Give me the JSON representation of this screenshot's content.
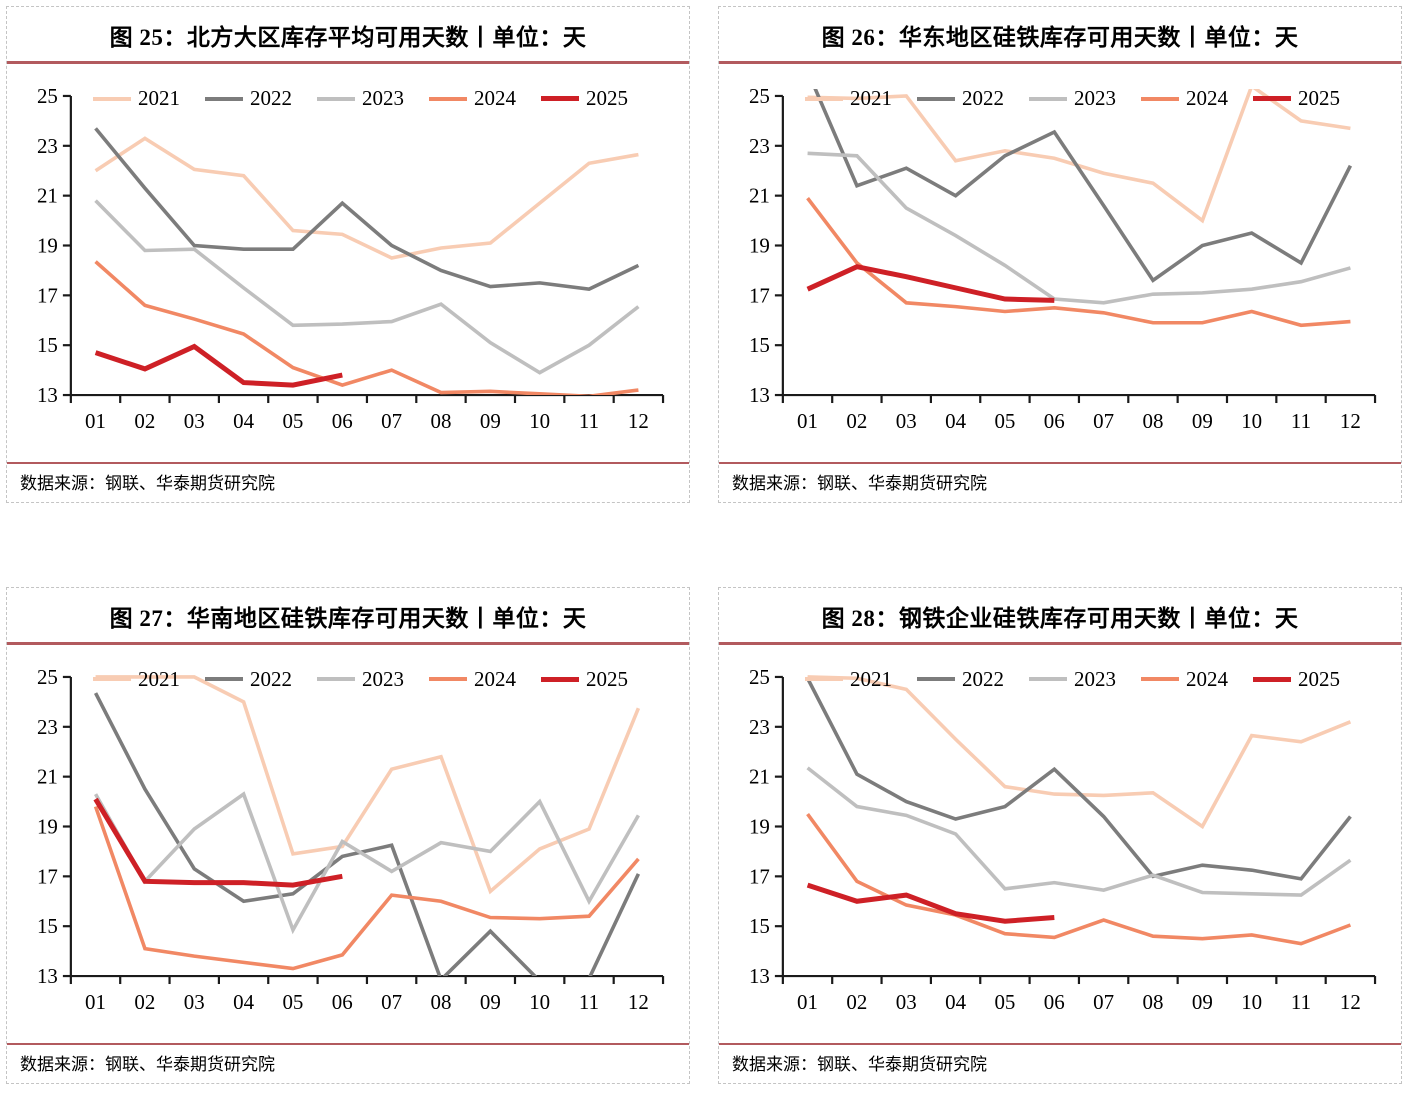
{
  "source_note": "数据来源：钢联、华泰期货研究院",
  "colors": {
    "accent_rule": "#b25a5e",
    "axis": "#1a1a1a",
    "panel_border": "#c4c4c4",
    "y2021": "#f8ccb3",
    "y2022": "#7c7c7c",
    "y2023": "#bfbfbf",
    "y2024": "#f18864",
    "y2025": "#ce2026"
  },
  "chart_data": [
    {
      "type": "line",
      "title": "图 25：北方大区库存平均可用天数丨单位：天",
      "source": "数据来源：钢联、华泰期货研究院",
      "categories": [
        "01",
        "02",
        "03",
        "04",
        "05",
        "06",
        "07",
        "08",
        "09",
        "10",
        "11",
        "12"
      ],
      "ylim": [
        13,
        25
      ],
      "yticks": [
        25,
        23,
        21,
        19,
        17,
        15,
        13
      ],
      "grid": false,
      "legend_position": "top-inside",
      "series": [
        {
          "name": "2021",
          "color": "#f8ccb3",
          "emphasis": false,
          "values": [
            22.0,
            23.3,
            22.05,
            21.8,
            19.6,
            19.45,
            18.5,
            18.9,
            19.1,
            20.7,
            22.3,
            22.65
          ]
        },
        {
          "name": "2022",
          "color": "#7c7c7c",
          "emphasis": false,
          "values": [
            23.7,
            21.3,
            19.0,
            18.85,
            18.85,
            20.7,
            19.0,
            18.0,
            17.35,
            17.5,
            17.25,
            18.2
          ]
        },
        {
          "name": "2023",
          "color": "#bfbfbf",
          "emphasis": false,
          "values": [
            20.8,
            18.8,
            18.85,
            17.3,
            15.8,
            15.85,
            15.95,
            16.65,
            15.1,
            13.9,
            15.0,
            16.55
          ]
        },
        {
          "name": "2024",
          "color": "#f18864",
          "emphasis": false,
          "values": [
            18.35,
            16.6,
            16.05,
            15.45,
            14.1,
            13.4,
            14.0,
            13.1,
            13.15,
            13.05,
            12.95,
            13.2
          ]
        },
        {
          "name": "2025",
          "color": "#ce2026",
          "emphasis": true,
          "values": [
            14.7,
            14.05,
            14.95,
            13.5,
            13.4,
            13.8
          ]
        }
      ]
    },
    {
      "type": "line",
      "title": "图 26：华东地区硅铁库存可用天数丨单位：天",
      "source": "数据来源：钢联、华泰期货研究院",
      "categories": [
        "01",
        "02",
        "03",
        "04",
        "05",
        "06",
        "07",
        "08",
        "09",
        "10",
        "11",
        "12"
      ],
      "ylim": [
        13,
        25
      ],
      "yticks": [
        25,
        23,
        21,
        19,
        17,
        15,
        13
      ],
      "grid": false,
      "legend_position": "top-inside",
      "series": [
        {
          "name": "2021",
          "color": "#f8ccb3",
          "emphasis": false,
          "values": [
            24.95,
            24.9,
            25.0,
            22.4,
            22.8,
            22.5,
            21.9,
            21.5,
            20.0,
            25.4,
            24.0,
            23.7
          ]
        },
        {
          "name": "2022",
          "color": "#7c7c7c",
          "emphasis": false,
          "values": [
            26.0,
            21.4,
            22.1,
            21.0,
            22.6,
            23.55,
            20.6,
            17.6,
            19.0,
            19.5,
            18.3,
            22.2
          ]
        },
        {
          "name": "2023",
          "color": "#bfbfbf",
          "emphasis": false,
          "values": [
            22.7,
            22.6,
            20.5,
            19.4,
            18.2,
            16.85,
            16.7,
            17.05,
            17.1,
            17.25,
            17.55,
            18.1
          ]
        },
        {
          "name": "2024",
          "color": "#f18864",
          "emphasis": false,
          "values": [
            20.9,
            18.3,
            16.7,
            16.55,
            16.35,
            16.5,
            16.3,
            15.9,
            15.9,
            16.35,
            15.8,
            15.95
          ]
        },
        {
          "name": "2025",
          "color": "#ce2026",
          "emphasis": true,
          "values": [
            17.25,
            18.15,
            17.75,
            17.3,
            16.85,
            16.8
          ]
        }
      ]
    },
    {
      "type": "line",
      "title": "图 27：华南地区硅铁库存可用天数丨单位：天",
      "source": "数据来源：钢联、华泰期货研究院",
      "categories": [
        "01",
        "02",
        "03",
        "04",
        "05",
        "06",
        "07",
        "08",
        "09",
        "10",
        "11",
        "12"
      ],
      "ylim": [
        13,
        25
      ],
      "yticks": [
        25,
        23,
        21,
        19,
        17,
        15,
        13
      ],
      "grid": false,
      "legend_position": "top-inside",
      "series": [
        {
          "name": "2021",
          "color": "#f8ccb3",
          "emphasis": false,
          "values": [
            25.0,
            25.0,
            25.0,
            24.0,
            17.9,
            18.2,
            21.3,
            21.8,
            16.4,
            18.1,
            18.9,
            23.75
          ]
        },
        {
          "name": "2022",
          "color": "#7c7c7c",
          "emphasis": false,
          "values": [
            24.35,
            20.5,
            17.3,
            16.0,
            16.3,
            17.8,
            18.25,
            12.85,
            14.8,
            12.8,
            12.9,
            17.1
          ]
        },
        {
          "name": "2023",
          "color": "#bfbfbf",
          "emphasis": false,
          "values": [
            20.3,
            16.8,
            18.9,
            20.3,
            14.85,
            18.4,
            17.2,
            18.35,
            18.0,
            20.0,
            16.0,
            19.45
          ]
        },
        {
          "name": "2024",
          "color": "#f18864",
          "emphasis": false,
          "values": [
            19.8,
            14.1,
            13.8,
            13.55,
            13.3,
            13.85,
            16.25,
            16.0,
            15.35,
            15.3,
            15.4,
            17.7
          ]
        },
        {
          "name": "2025",
          "color": "#ce2026",
          "emphasis": true,
          "values": [
            20.1,
            16.8,
            16.75,
            16.75,
            16.65,
            17.0
          ]
        }
      ]
    },
    {
      "type": "line",
      "title": "图 28：钢铁企业硅铁库存可用天数丨单位：天",
      "source": "数据来源：钢联、华泰期货研究院",
      "categories": [
        "01",
        "02",
        "03",
        "04",
        "05",
        "06",
        "07",
        "08",
        "09",
        "10",
        "11",
        "12"
      ],
      "ylim": [
        13,
        25
      ],
      "yticks": [
        25,
        23,
        21,
        19,
        17,
        15,
        13
      ],
      "grid": false,
      "legend_position": "top-inside",
      "series": [
        {
          "name": "2021",
          "color": "#f8ccb3",
          "emphasis": false,
          "values": [
            25.0,
            24.95,
            24.5,
            22.5,
            20.6,
            20.3,
            20.25,
            20.35,
            19.0,
            22.65,
            22.4,
            23.2
          ]
        },
        {
          "name": "2022",
          "color": "#7c7c7c",
          "emphasis": false,
          "values": [
            24.95,
            21.1,
            20.0,
            19.3,
            19.8,
            21.3,
            19.4,
            17.0,
            17.45,
            17.25,
            16.9,
            19.4
          ]
        },
        {
          "name": "2023",
          "color": "#bfbfbf",
          "emphasis": false,
          "values": [
            21.35,
            19.8,
            19.45,
            18.7,
            16.5,
            16.75,
            16.45,
            17.05,
            16.35,
            16.3,
            16.25,
            17.65
          ]
        },
        {
          "name": "2024",
          "color": "#f18864",
          "emphasis": false,
          "values": [
            19.5,
            16.8,
            15.85,
            15.45,
            14.7,
            14.55,
            15.25,
            14.6,
            14.5,
            14.65,
            14.3,
            15.05
          ]
        },
        {
          "name": "2025",
          "color": "#ce2026",
          "emphasis": true,
          "values": [
            16.65,
            16.0,
            16.25,
            15.5,
            15.2,
            15.35
          ]
        }
      ]
    }
  ]
}
